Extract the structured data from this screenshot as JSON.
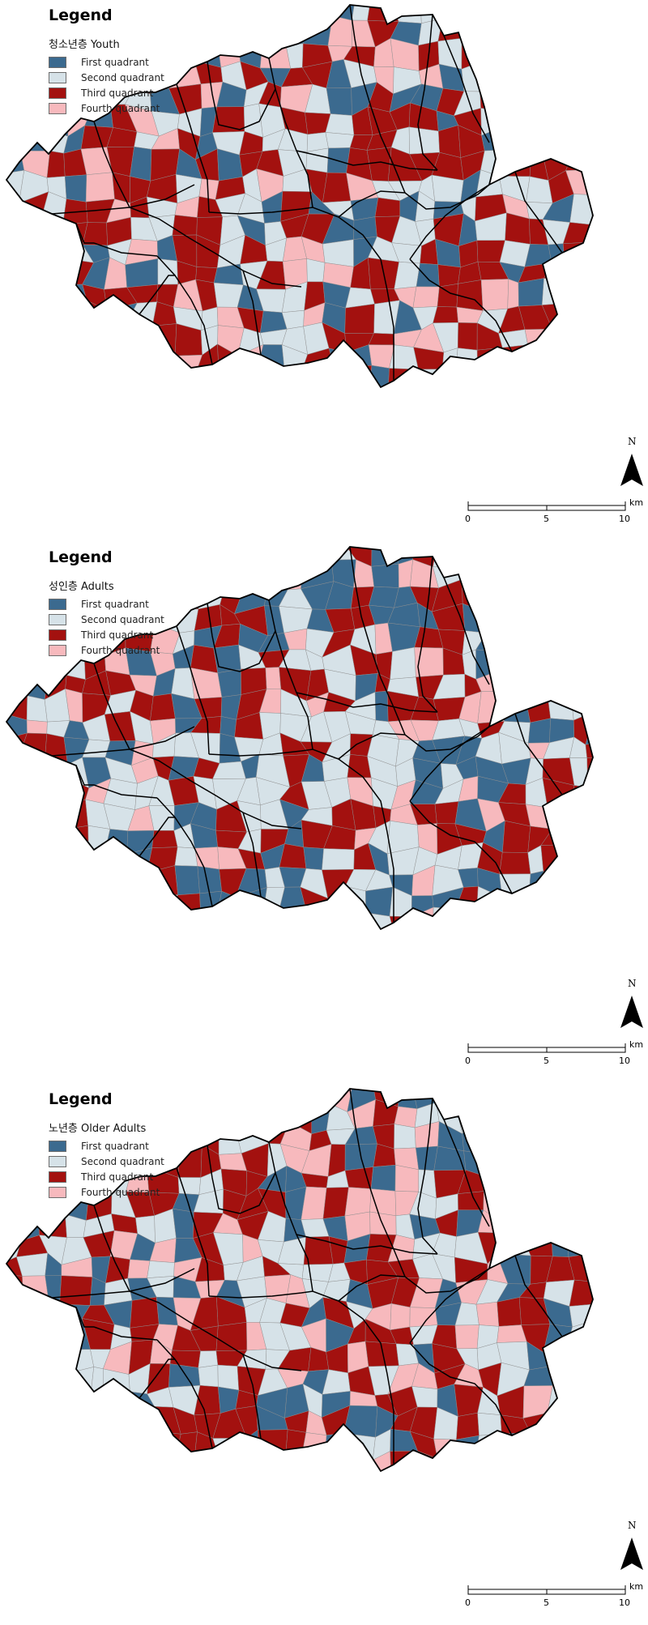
{
  "colors": {
    "first": "#3b6a8f",
    "second": "#d6e2e8",
    "third": "#a3110f",
    "fourth": "#f7b9bd",
    "boundary": "#000000",
    "subboundary": "#8e8e8e"
  },
  "legend_items": [
    {
      "label": "First quadrant",
      "color_key": "first"
    },
    {
      "label": "Second quadrant",
      "color_key": "second"
    },
    {
      "label": "Third quadrant",
      "color_key": "third"
    },
    {
      "label": "Fourth quadrant",
      "color_key": "fourth"
    }
  ],
  "panels": [
    {
      "legend_title": "Legend",
      "group_label": "청소년층 Youth",
      "north_label": "N",
      "scale_labels": [
        "0",
        "5",
        "10"
      ],
      "scale_unit": "km",
      "seed": 11,
      "weights": [
        0.22,
        0.28,
        0.38,
        0.12
      ]
    },
    {
      "legend_title": "Legend",
      "group_label": "성인층 Adults",
      "north_label": "N",
      "scale_labels": [
        "0",
        "5",
        "10"
      ],
      "scale_unit": "km",
      "seed": 29,
      "weights": [
        0.26,
        0.32,
        0.32,
        0.1
      ]
    },
    {
      "legend_title": "Legend",
      "group_label": "노년층 Older Adults",
      "north_label": "N",
      "scale_labels": [
        "0",
        "5",
        "10"
      ],
      "scale_unit": "km",
      "seed": 47,
      "weights": [
        0.2,
        0.3,
        0.36,
        0.14
      ]
    }
  ]
}
